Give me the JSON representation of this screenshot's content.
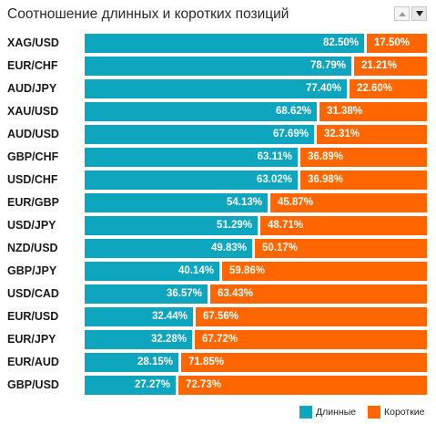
{
  "title": "Соотношение длинных и коротких позиций",
  "controls": {
    "up_icon": "triangle-up-icon",
    "down_icon": "triangle-down-icon"
  },
  "colors": {
    "long": "#0ea5be",
    "short": "#ff6600"
  },
  "chart_data": {
    "type": "bar",
    "orientation": "horizontal",
    "stacked": true,
    "unit": "%",
    "title": "Соотношение длинных и коротких позиций",
    "xlim": [
      0,
      100
    ],
    "categories": [
      "XAG/USD",
      "EUR/CHF",
      "AUD/JPY",
      "XAU/USD",
      "AUD/USD",
      "GBP/CHF",
      "USD/CHF",
      "EUR/GBP",
      "USD/JPY",
      "NZD/USD",
      "GBP/JPY",
      "USD/CAD",
      "EUR/USD",
      "EUR/JPY",
      "EUR/AUD",
      "GBP/USD"
    ],
    "series": [
      {
        "name": "Длинные",
        "values": [
          82.5,
          78.79,
          77.4,
          68.62,
          67.69,
          63.11,
          63.02,
          54.13,
          51.29,
          49.83,
          40.14,
          36.57,
          32.44,
          32.28,
          28.15,
          27.27
        ]
      },
      {
        "name": "Короткие",
        "values": [
          17.5,
          21.21,
          22.6,
          31.38,
          32.31,
          36.89,
          36.98,
          45.87,
          48.71,
          50.17,
          59.86,
          63.43,
          67.56,
          67.72,
          71.85,
          72.73
        ]
      }
    ],
    "legend": "bottom-right"
  }
}
